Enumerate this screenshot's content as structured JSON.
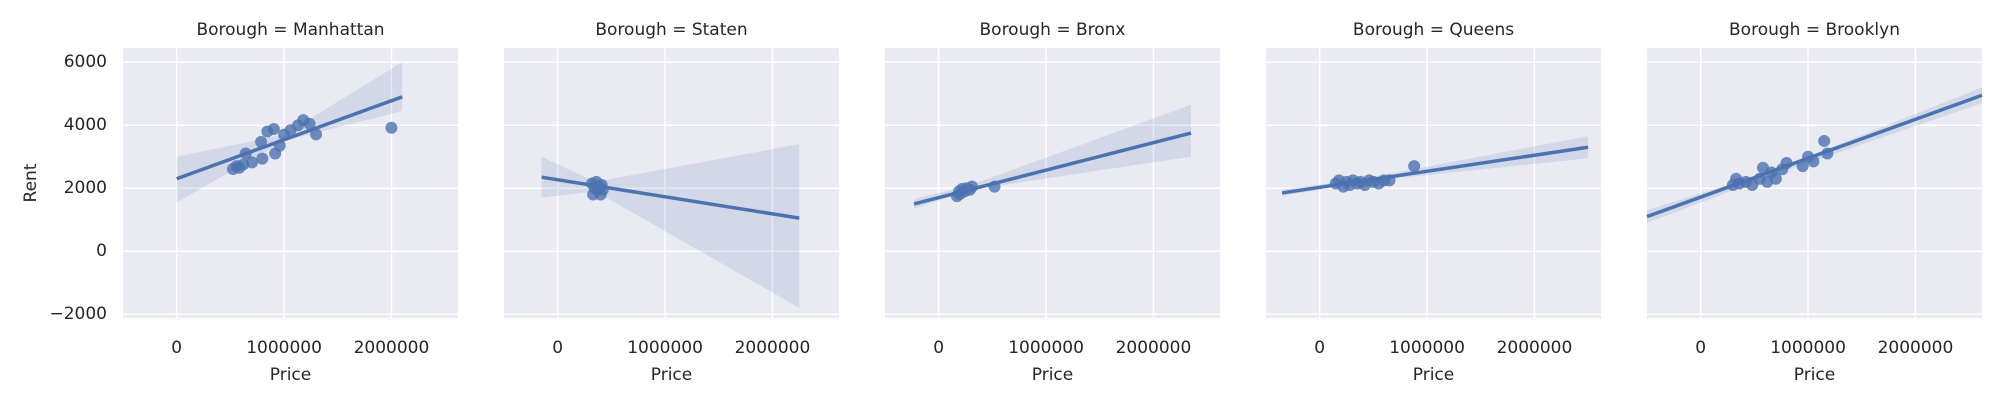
{
  "chart_data": [
    {
      "type": "scatter",
      "title": "Borough = Manhattan",
      "xlabel": "Price",
      "ylabel": "Rent",
      "color": "#4c72b0",
      "x": [
        524000,
        560000,
        583000,
        620000,
        643000,
        702000,
        786000,
        798000,
        845000,
        905000,
        917000,
        960000,
        1000000,
        1060000,
        1131000,
        1179000,
        1238000,
        1298000,
        2000000
      ],
      "y": [
        2610,
        2700,
        2650,
        2750,
        3100,
        2820,
        3470,
        2940,
        3800,
        3880,
        3100,
        3350,
        3700,
        3840,
        4000,
        4160,
        4040,
        3710,
        3920
      ],
      "fit": {
        "x": [
          0,
          2100000
        ],
        "y": [
          2300,
          4900
        ]
      },
      "ci": {
        "x": [
          0,
          1000000,
          2100000
        ],
        "lower": [
          1550,
          3500,
          4450
        ],
        "upper": [
          3000,
          3700,
          6000
        ]
      },
      "xlim": [
        -500000,
        2620000
      ],
      "ylim": [
        -2120,
        6450
      ],
      "xticks": [
        0,
        1000000,
        2000000
      ],
      "yticks": [
        {
          "value": -2000,
          "label": "−2000"
        },
        0,
        2000,
        4000,
        6000
      ],
      "grid": true
    },
    {
      "type": "scatter",
      "title": "Borough = Staten",
      "xlabel": "Price",
      "color": "#4c72b0",
      "x": [
        320000,
        330000,
        345000,
        360000,
        370000,
        385000,
        400000,
        410000,
        420000
      ],
      "y": [
        2150,
        1800,
        2000,
        2200,
        1950,
        2050,
        1800,
        2100,
        1950
      ],
      "fit": {
        "x": [
          -150000,
          2250000
        ],
        "y": [
          2350,
          1050
        ]
      },
      "ci": {
        "x": [
          -150000,
          350000,
          2250000
        ],
        "lower": [
          1700,
          1900,
          -1800
        ],
        "upper": [
          3000,
          2200,
          3400
        ]
      },
      "xlim": [
        -500000,
        2620000
      ],
      "ylim": [
        -2120,
        6450
      ],
      "xticks": [
        0,
        1000000,
        2000000
      ],
      "yticks": [
        {
          "value": -2000,
          "label": "−2000"
        },
        0,
        2000,
        4000,
        6000
      ],
      "grid": true
    },
    {
      "type": "scatter",
      "title": "Borough = Bronx",
      "xlabel": "Price",
      "color": "#4c72b0",
      "x": [
        170000,
        190000,
        200000,
        220000,
        240000,
        260000,
        290000,
        310000,
        520000
      ],
      "y": [
        1750,
        1900,
        1820,
        1980,
        1900,
        2000,
        1950,
        2050,
        2050
      ],
      "fit": {
        "x": [
          -230000,
          2350000
        ],
        "y": [
          1500,
          3750
        ]
      },
      "ci": {
        "x": [
          -230000,
          300000,
          2350000
        ],
        "lower": [
          1350,
          1950,
          3000
        ],
        "upper": [
          1650,
          2100,
          4650
        ]
      },
      "xlim": [
        -500000,
        2620000
      ],
      "ylim": [
        -2120,
        6450
      ],
      "xticks": [
        0,
        1000000,
        2000000
      ],
      "yticks": [
        {
          "value": -2000,
          "label": "−2000"
        },
        0,
        2000,
        4000,
        6000
      ],
      "grid": true
    },
    {
      "type": "scatter",
      "title": "Borough = Queens",
      "xlabel": "Price",
      "color": "#4c72b0",
      "x": [
        150000,
        180000,
        220000,
        250000,
        280000,
        310000,
        350000,
        380000,
        420000,
        460000,
        500000,
        550000,
        600000,
        650000,
        880000
      ],
      "y": [
        2150,
        2250,
        2050,
        2200,
        2100,
        2250,
        2150,
        2200,
        2100,
        2250,
        2200,
        2150,
        2250,
        2250,
        2700
      ],
      "fit": {
        "x": [
          -350000,
          2500000
        ],
        "y": [
          1850,
          3300
        ]
      },
      "ci": {
        "x": [
          -350000,
          400000,
          2500000
        ],
        "lower": [
          1750,
          2200,
          2950
        ],
        "upper": [
          1950,
          2300,
          3650
        ]
      },
      "xlim": [
        -500000,
        2620000
      ],
      "ylim": [
        -2120,
        6450
      ],
      "xticks": [
        0,
        1000000,
        2000000
      ],
      "yticks": [
        {
          "value": -2000,
          "label": "−2000"
        },
        0,
        2000,
        4000,
        6000
      ],
      "grid": true
    },
    {
      "type": "scatter",
      "title": "Borough = Brooklyn",
      "xlabel": "Price",
      "color": "#4c72b0",
      "x": [
        300000,
        330000,
        360000,
        420000,
        480000,
        550000,
        580000,
        620000,
        660000,
        700000,
        760000,
        800000,
        950000,
        1000000,
        1050000,
        1150000,
        1180000
      ],
      "y": [
        2100,
        2300,
        2150,
        2200,
        2100,
        2300,
        2650,
        2200,
        2500,
        2300,
        2600,
        2800,
        2700,
        3000,
        2850,
        3500,
        3100
      ],
      "fit": {
        "x": [
          -500000,
          2620000
        ],
        "y": [
          1100,
          4950
        ]
      },
      "ci": {
        "x": [
          -500000,
          700000,
          2620000
        ],
        "lower": [
          900,
          2450,
          4700
        ],
        "upper": [
          1300,
          2600,
          5200
        ]
      },
      "xlim": [
        -500000,
        2620000
      ],
      "ylim": [
        -2120,
        6450
      ],
      "xticks": [
        0,
        1000000,
        2000000
      ],
      "yticks": [
        {
          "value": -2000,
          "label": "−2000"
        },
        0,
        2000,
        4000,
        6000
      ],
      "grid": true
    }
  ]
}
